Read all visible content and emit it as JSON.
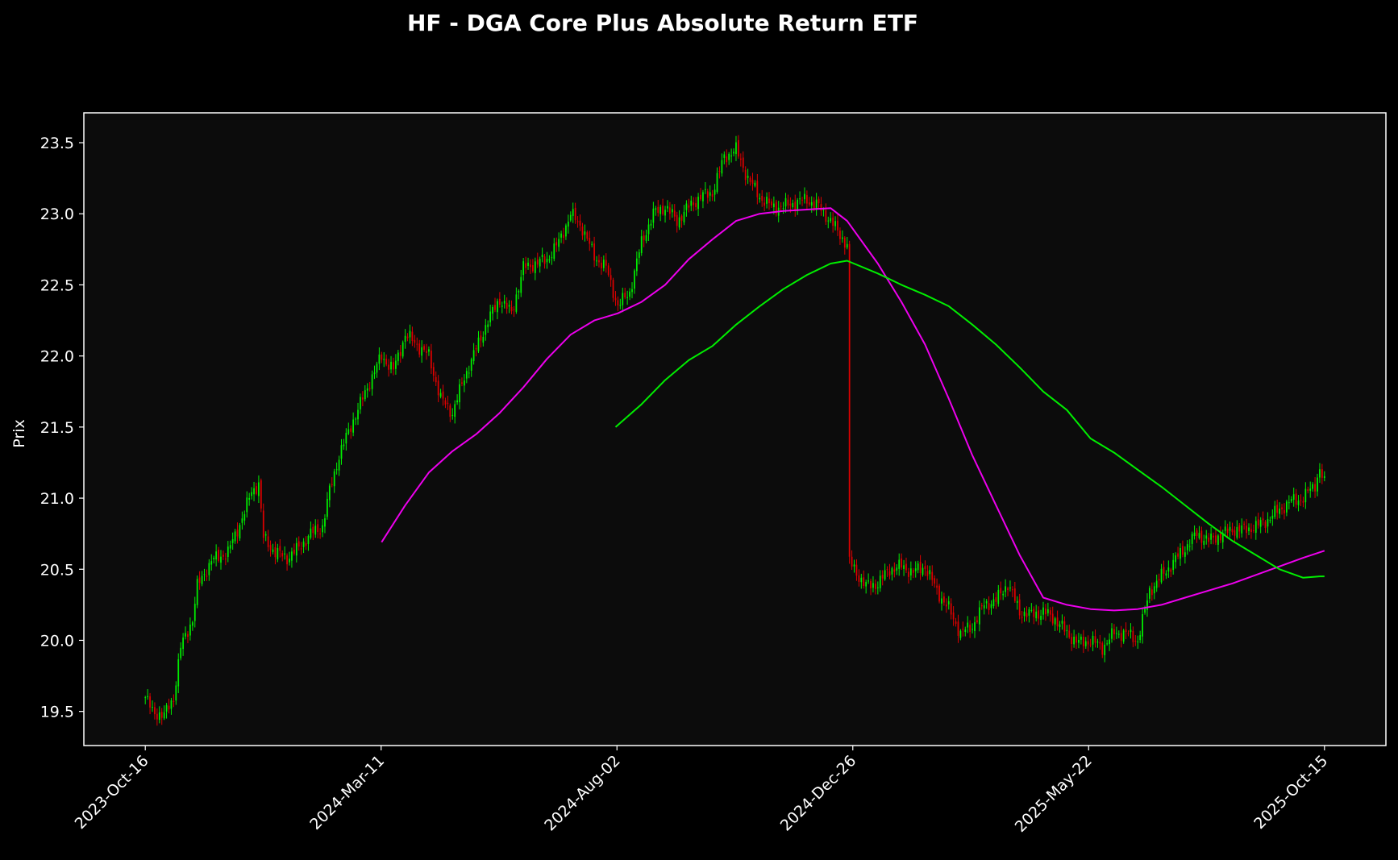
{
  "chart_data": {
    "type": "candlestick",
    "title": "HF - DGA Core Plus Absolute Return ETF",
    "xlabel": "",
    "ylabel": "Prix",
    "x_tick_labels": [
      "2023-Oct-16",
      "2024-Mar-11",
      "2024-Aug-02",
      "2024-Dec-26",
      "2025-May-22",
      "2025-Oct-15"
    ],
    "y_ticks": [
      19.5,
      20.0,
      20.5,
      21.0,
      21.5,
      22.0,
      22.5,
      23.0,
      23.5
    ],
    "ylim": [
      19.26,
      23.71
    ],
    "xlim": [
      -26,
      525
    ],
    "trading_days_shown": 500,
    "colors": {
      "background": "#000000",
      "plot_bg": "#0c0c0c",
      "up": "#00ee00",
      "down": "#dd0000",
      "ma_fast": "#ee00ee",
      "ma_slow": "#00ee00",
      "axis": "#ffffff"
    },
    "anchors": [
      [
        0,
        19.6
      ],
      [
        3,
        19.5
      ],
      [
        8,
        19.47
      ],
      [
        12,
        19.6
      ],
      [
        15,
        19.95
      ],
      [
        20,
        20.15
      ],
      [
        22,
        20.38
      ],
      [
        28,
        20.56
      ],
      [
        35,
        20.62
      ],
      [
        42,
        20.9
      ],
      [
        45,
        21.05
      ],
      [
        48,
        21.1
      ],
      [
        50,
        20.72
      ],
      [
        55,
        20.62
      ],
      [
        60,
        20.58
      ],
      [
        65,
        20.65
      ],
      [
        70,
        20.75
      ],
      [
        75,
        20.8
      ],
      [
        78,
        21.05
      ],
      [
        82,
        21.3
      ],
      [
        88,
        21.55
      ],
      [
        92,
        21.7
      ],
      [
        95,
        21.82
      ],
      [
        100,
        22.0
      ],
      [
        105,
        21.9
      ],
      [
        110,
        22.15
      ],
      [
        115,
        22.08
      ],
      [
        120,
        22.0
      ],
      [
        125,
        21.7
      ],
      [
        130,
        21.6
      ],
      [
        135,
        21.85
      ],
      [
        140,
        22.05
      ],
      [
        145,
        22.25
      ],
      [
        150,
        22.4
      ],
      [
        155,
        22.3
      ],
      [
        160,
        22.62
      ],
      [
        165,
        22.65
      ],
      [
        170,
        22.68
      ],
      [
        175,
        22.8
      ],
      [
        180,
        23.0
      ],
      [
        185,
        22.9
      ],
      [
        190,
        22.7
      ],
      [
        195,
        22.62
      ],
      [
        200,
        22.35
      ],
      [
        205,
        22.45
      ],
      [
        210,
        22.8
      ],
      [
        215,
        23.0
      ],
      [
        220,
        23.05
      ],
      [
        225,
        22.95
      ],
      [
        230,
        23.05
      ],
      [
        235,
        23.12
      ],
      [
        240,
        23.15
      ],
      [
        245,
        23.4
      ],
      [
        250,
        23.45
      ],
      [
        255,
        23.25
      ],
      [
        260,
        23.12
      ],
      [
        265,
        23.05
      ],
      [
        270,
        23.05
      ],
      [
        275,
        23.08
      ],
      [
        280,
        23.1
      ],
      [
        285,
        23.05
      ],
      [
        290,
        22.95
      ],
      [
        297,
        22.78
      ],
      [
        298,
        20.55
      ],
      [
        300,
        20.5
      ],
      [
        305,
        20.38
      ],
      [
        310,
        20.4
      ],
      [
        315,
        20.5
      ],
      [
        320,
        20.52
      ],
      [
        325,
        20.48
      ],
      [
        330,
        20.52
      ],
      [
        335,
        20.35
      ],
      [
        340,
        20.22
      ],
      [
        345,
        20.05
      ],
      [
        350,
        20.1
      ],
      [
        355,
        20.25
      ],
      [
        360,
        20.28
      ],
      [
        365,
        20.4
      ],
      [
        370,
        20.2
      ],
      [
        375,
        20.18
      ],
      [
        380,
        20.2
      ],
      [
        385,
        20.15
      ],
      [
        390,
        20.05
      ],
      [
        395,
        19.98
      ],
      [
        400,
        20.0
      ],
      [
        405,
        19.95
      ],
      [
        410,
        20.05
      ],
      [
        415,
        20.05
      ],
      [
        420,
        20.0
      ],
      [
        425,
        20.35
      ],
      [
        430,
        20.45
      ],
      [
        435,
        20.55
      ],
      [
        440,
        20.65
      ],
      [
        445,
        20.75
      ],
      [
        450,
        20.7
      ],
      [
        455,
        20.74
      ],
      [
        460,
        20.78
      ],
      [
        465,
        20.78
      ],
      [
        470,
        20.8
      ],
      [
        475,
        20.85
      ],
      [
        480,
        20.92
      ],
      [
        485,
        20.98
      ],
      [
        490,
        21.0
      ],
      [
        495,
        21.1
      ],
      [
        497,
        21.2
      ],
      [
        499,
        21.1
      ]
    ],
    "series": [
      {
        "name": "",
        "x": [
          100,
          110,
          120,
          130,
          140,
          150,
          160,
          170,
          180,
          190,
          200,
          210,
          220,
          230,
          240,
          250,
          260,
          270,
          280,
          290,
          297,
          310,
          320,
          330,
          340,
          350,
          360,
          370,
          380,
          390,
          400,
          410,
          420,
          430,
          440,
          450,
          460,
          470,
          480,
          490,
          499
        ],
        "values": [
          20.69,
          20.95,
          21.18,
          21.33,
          21.45,
          21.6,
          21.78,
          21.98,
          22.15,
          22.25,
          22.3,
          22.38,
          22.5,
          22.68,
          22.82,
          22.95,
          23.0,
          23.02,
          23.03,
          23.04,
          22.95,
          22.65,
          22.38,
          22.08,
          21.7,
          21.3,
          20.95,
          20.6,
          20.3,
          20.25,
          20.22,
          20.21,
          20.22,
          20.25,
          20.3,
          20.35,
          20.4,
          20.46,
          20.52,
          20.58,
          20.63
        ]
      },
      {
        "name": "",
        "x": [
          199,
          210,
          220,
          230,
          240,
          250,
          260,
          270,
          280,
          290,
          297,
          310,
          320,
          330,
          340,
          350,
          360,
          370,
          380,
          390,
          400,
          410,
          420,
          430,
          440,
          450,
          460,
          470,
          480,
          490,
          497,
          499
        ],
        "values": [
          21.5,
          21.66,
          21.83,
          21.97,
          22.07,
          22.22,
          22.35,
          22.47,
          22.57,
          22.65,
          22.67,
          22.58,
          22.5,
          22.43,
          22.35,
          22.22,
          22.08,
          21.92,
          21.75,
          21.62,
          21.42,
          21.32,
          21.2,
          21.08,
          20.95,
          20.82,
          20.7,
          20.6,
          20.5,
          20.44,
          20.45,
          20.45
        ]
      }
    ]
  }
}
